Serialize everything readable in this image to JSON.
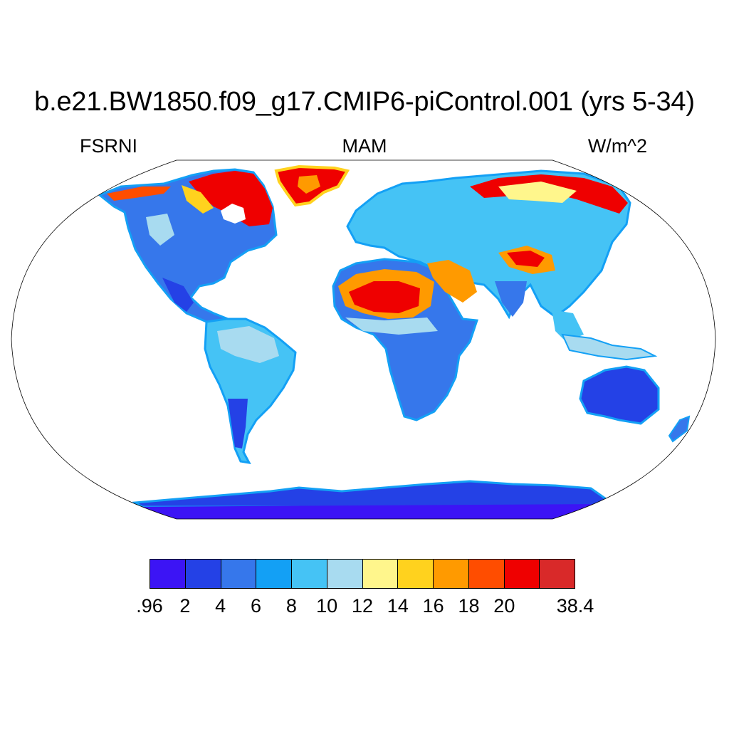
{
  "title": "b.e21.BW1850.f09_g17.CMIP6-piControl.001 (yrs 5-34)",
  "left_subtitle": "FSRNI",
  "center_subtitle": "MAM",
  "right_subtitle": "W/m^2",
  "colorbar": {
    "colors": [
      "#3c14f5",
      "#2441e6",
      "#3677eb",
      "#13a0f5",
      "#45c3f5",
      "#a8dbf0",
      "#fff68c",
      "#ffd21e",
      "#ff9a00",
      "#ff4d00",
      "#ef0000",
      "#d92929"
    ],
    "labels": [
      ".96",
      "2",
      "4",
      "6",
      "8",
      "10",
      "12",
      "14",
      "16",
      "18",
      "20",
      "38.4"
    ]
  },
  "map": {
    "projection": "robinson",
    "ocean_color": "#ffffff",
    "border_color": "#000000"
  }
}
